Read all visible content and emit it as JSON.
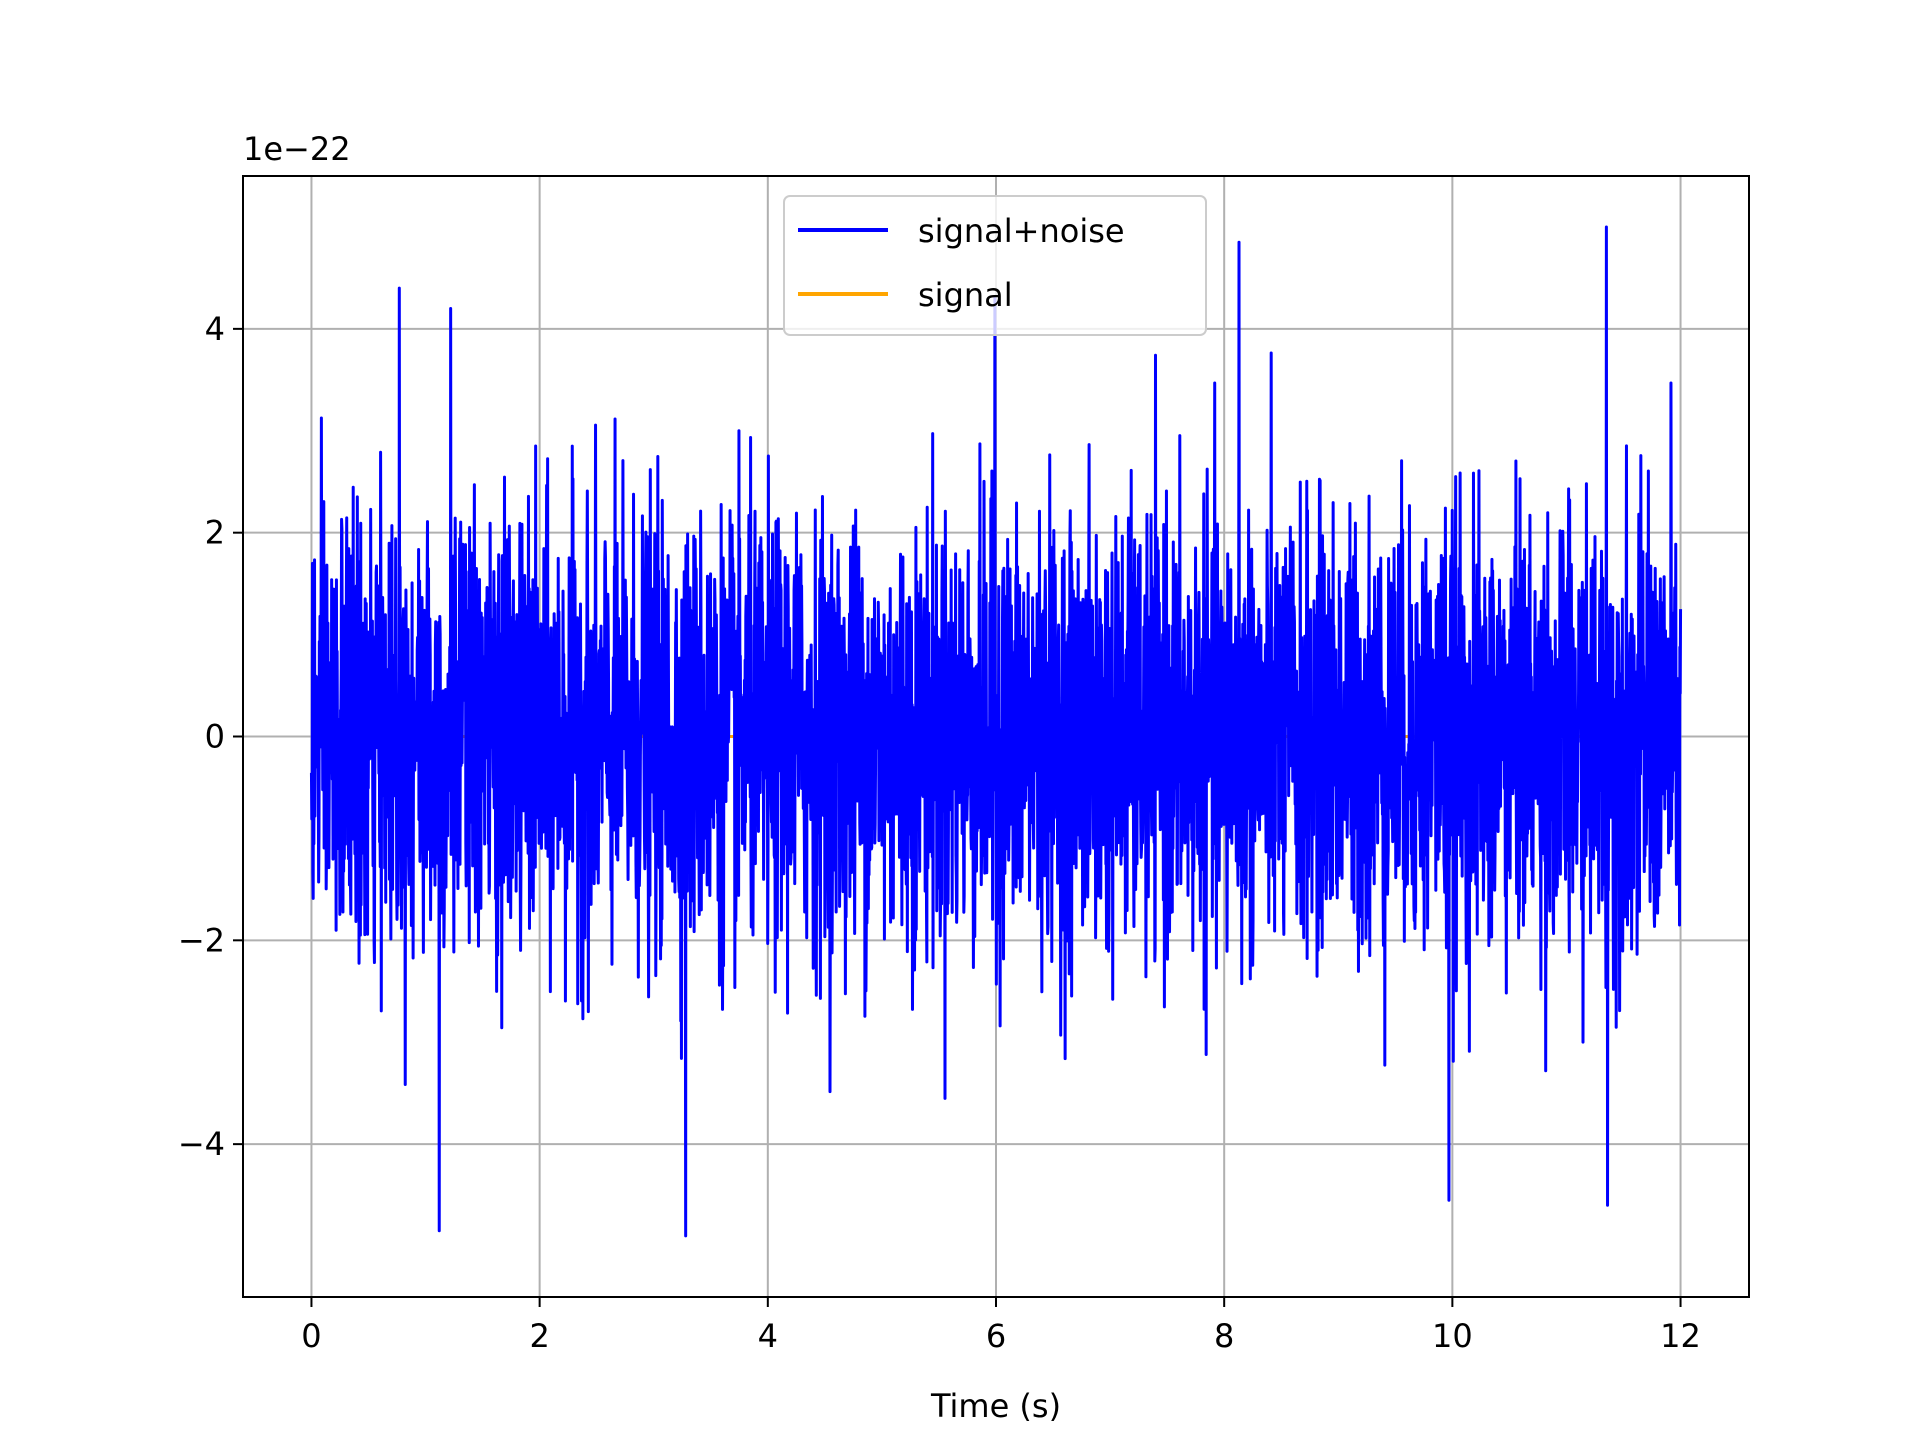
{
  "chart_data": {
    "type": "line",
    "title": "",
    "xlabel": "Time (s)",
    "ylabel": "",
    "y_offset_label": "1e−22",
    "y_scale_factor": 1e-22,
    "xlim": [
      -0.6,
      12.6
    ],
    "ylim": [
      -5.5e-22,
      5.5e-22
    ],
    "xticks": [
      0,
      2,
      4,
      6,
      8,
      10,
      12
    ],
    "xtick_labels": [
      "0",
      "2",
      "4",
      "6",
      "8",
      "10",
      "12"
    ],
    "yticks": [
      -4e-22,
      -2e-22,
      0,
      2e-22,
      4e-22
    ],
    "ytick_labels": [
      "−4",
      "−2",
      "0",
      "2",
      "4"
    ],
    "grid": true,
    "legend_position": "upper center",
    "series": [
      {
        "name": "signal+noise",
        "color": "#0000ff",
        "x_start": 0,
        "x_end": 12,
        "y_min": -4.9e-22,
        "y_max": 5e-22,
        "notable_peaks": [
          {
            "x": 0.77,
            "y": 4.4e-22
          },
          {
            "x": 1.22,
            "y": 4.2e-22
          },
          {
            "x": 5.99,
            "y": 4.3e-22
          },
          {
            "x": 8.13,
            "y": 4.85e-22
          },
          {
            "x": 11.35,
            "y": 5e-22
          },
          {
            "x": 1.12,
            "y": -4.85e-22
          },
          {
            "x": 3.28,
            "y": -4.9e-22
          },
          {
            "x": 9.97,
            "y": -4.55e-22
          },
          {
            "x": 11.36,
            "y": -4.6e-22
          }
        ]
      },
      {
        "name": "signal",
        "color": "#ffa500",
        "x_start": 0,
        "x_end": 12,
        "y_min": 0,
        "y_max": 0
      }
    ]
  }
}
